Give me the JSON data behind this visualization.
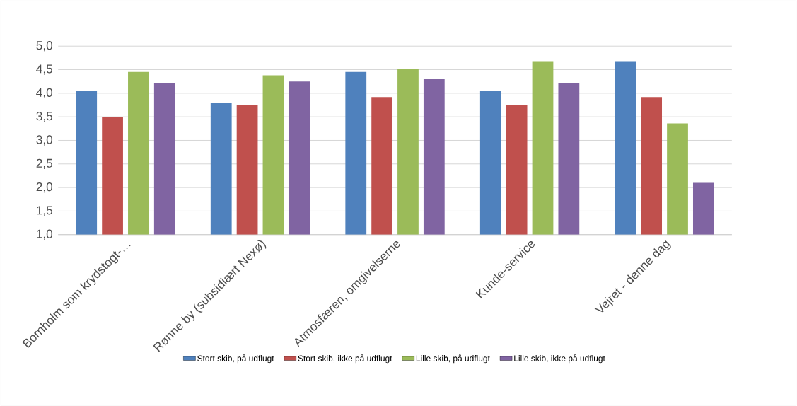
{
  "chart_data": {
    "type": "bar",
    "categories": [
      "Bornholm som krydstogt-…",
      "Rønne by (subsidiært Nexø)",
      "Atmosfæren, omgivelserne",
      "Kunde-service",
      "Vejret - denne dag"
    ],
    "series": [
      {
        "name": "Stort skib, på udflugt",
        "color": "#4f81bd",
        "values": [
          4.05,
          3.79,
          4.45,
          4.05,
          4.68
        ]
      },
      {
        "name": "Stort skib, ikke på udflugt",
        "color": "#c0504d",
        "values": [
          3.49,
          3.75,
          3.92,
          3.75,
          3.92
        ]
      },
      {
        "name": "Lille skib, på udflugt",
        "color": "#9bbb59",
        "values": [
          4.45,
          4.38,
          4.51,
          4.68,
          3.36
        ]
      },
      {
        "name": "Lille skib, ikke på udflugt",
        "color": "#8064a2",
        "values": [
          4.22,
          4.25,
          4.31,
          4.21,
          2.1
        ]
      }
    ],
    "ylim": [
      1,
      5
    ],
    "yticks": [
      {
        "value": 1,
        "label": "1,0"
      },
      {
        "value": 1.5,
        "label": "1,5"
      },
      {
        "value": 2,
        "label": "2,0"
      },
      {
        "value": 2.5,
        "label": "2,5"
      },
      {
        "value": 3,
        "label": "3,0"
      },
      {
        "value": 3.5,
        "label": "3,5"
      },
      {
        "value": 4,
        "label": "4,0"
      },
      {
        "value": 4.5,
        "label": "4,5"
      },
      {
        "value": 5,
        "label": "5,0"
      }
    ],
    "grid": "y",
    "legend": "bottom"
  }
}
